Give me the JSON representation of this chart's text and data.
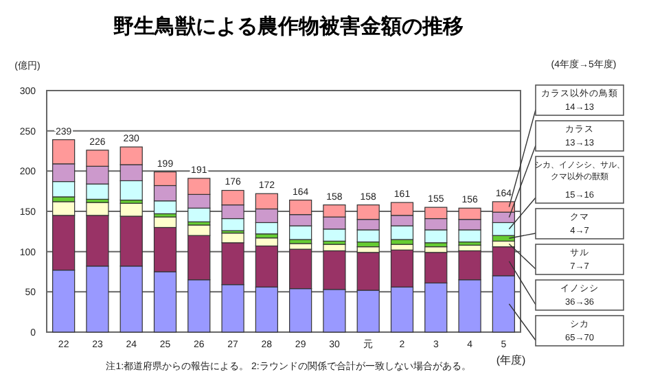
{
  "chart_data": {
    "type": "bar",
    "stacked": true,
    "title": "野生鳥獣による農作物被害金額の推移",
    "ylabel": "(億円)",
    "xlabel": "(年度)",
    "categories": [
      "22",
      "23",
      "24",
      "25",
      "26",
      "27",
      "28",
      "29",
      "30",
      "元",
      "2",
      "3",
      "4",
      "5"
    ],
    "series": [
      {
        "name": "シカ",
        "color": "#9999ff",
        "values": [
          77,
          82,
          82,
          75,
          65,
          59,
          56,
          54,
          53,
          52,
          56,
          61,
          65,
          70
        ]
      },
      {
        "name": "イノシシ",
        "color": "#993366",
        "values": [
          68,
          63,
          62,
          55,
          55,
          52,
          51,
          49,
          48,
          47,
          46,
          38,
          36,
          36
        ]
      },
      {
        "name": "サル",
        "color": "#ffffcc",
        "values": [
          17,
          16,
          16,
          13,
          13,
          12,
          10,
          7,
          8,
          7,
          7,
          7,
          7,
          7
        ]
      },
      {
        "name": "クマ",
        "color": "#66cc33",
        "values": [
          6,
          4,
          4,
          4,
          4,
          3,
          5,
          5,
          4,
          6,
          6,
          5,
          4,
          7
        ]
      },
      {
        "name": "シカ、イノシシ、サル、クマ以外の獣類",
        "color": "#ccffff",
        "values": [
          19,
          19,
          24,
          16,
          17,
          15,
          14,
          17,
          15,
          15,
          17,
          16,
          15,
          16
        ]
      },
      {
        "name": "カラス",
        "color": "#cc99cc",
        "values": [
          22,
          22,
          20,
          19,
          17,
          17,
          17,
          14,
          15,
          13,
          13,
          14,
          13,
          13
        ]
      },
      {
        "name": "カラス以外の鳥類",
        "color": "#ff9999",
        "values": [
          30,
          20,
          22,
          17,
          20,
          18,
          19,
          18,
          15,
          18,
          16,
          14,
          14,
          13
        ]
      }
    ],
    "totals": [
      "239",
      "226",
      "230",
      "199",
      "191",
      "176",
      "172",
      "164",
      "158",
      "158",
      "161",
      "155",
      "156",
      "164"
    ],
    "ylim": [
      0,
      300
    ],
    "yticks": [
      0,
      50,
      100,
      150,
      200,
      250,
      300
    ],
    "grid": "y",
    "legend": "right",
    "annotations": [
      "(4年度→5年度)",
      "14→13",
      "13→13",
      "15→16",
      "4→7",
      "7→7",
      "36→36",
      "65→70",
      "注1:都道府県からの報告による。 2:ラウンドの関係で合計が一致しない場合がある。"
    ]
  }
}
